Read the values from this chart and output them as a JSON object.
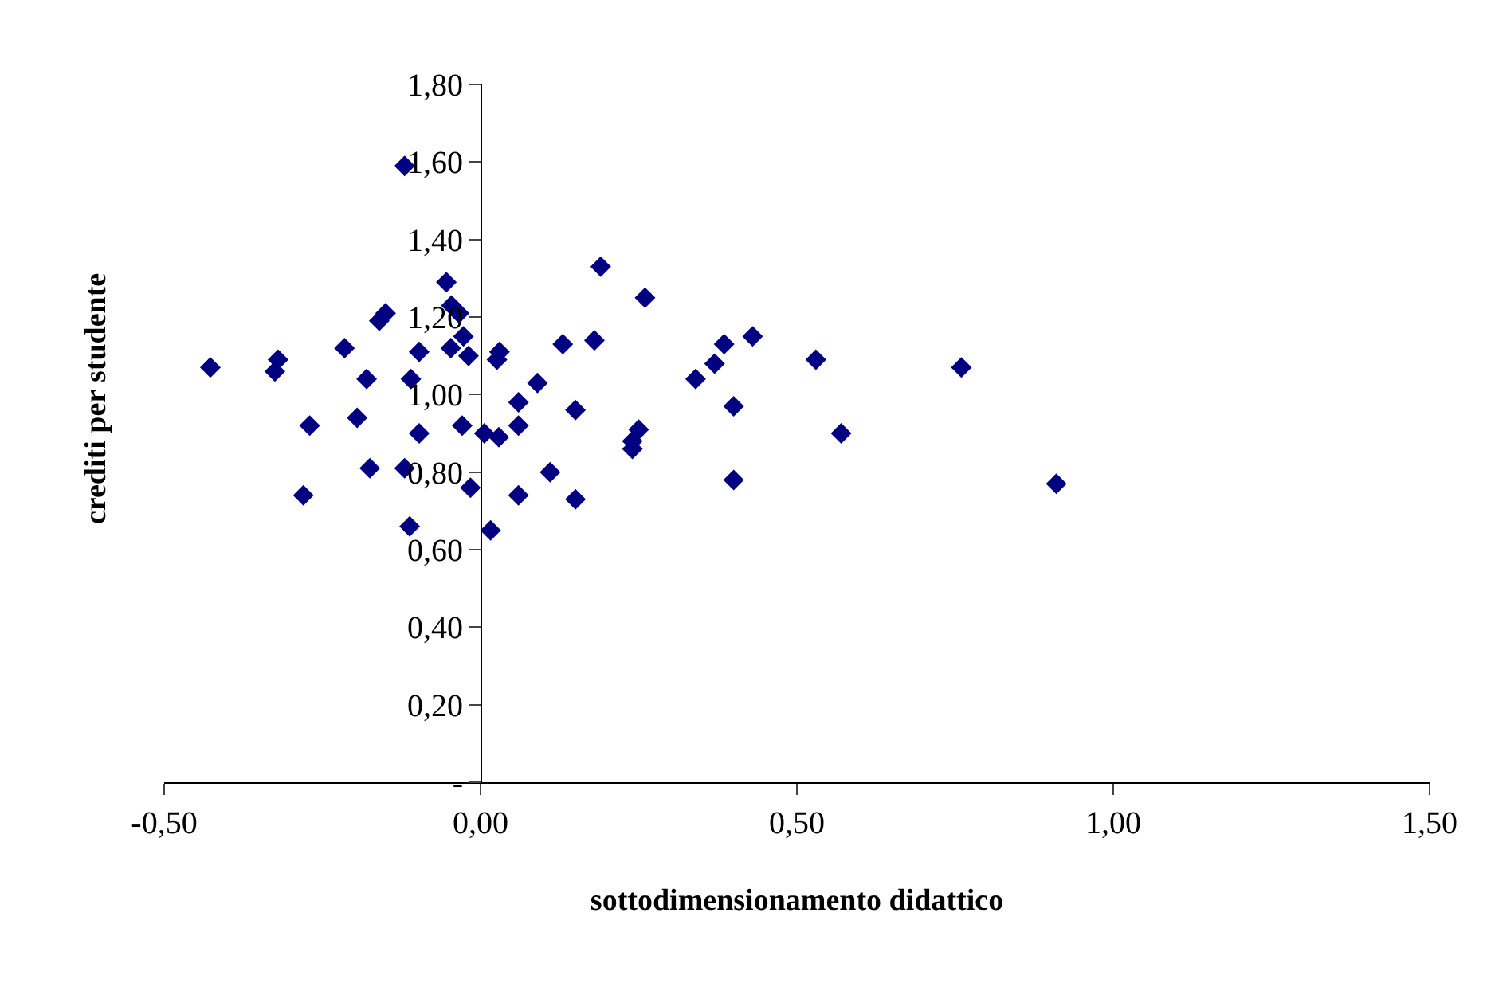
{
  "chart_data": {
    "type": "scatter",
    "xlabel": "sottodimensionamento didattico",
    "ylabel": "crediti per studente",
    "x": [
      -0.427,
      -0.32,
      -0.325,
      -0.27,
      -0.28,
      -0.215,
      -0.195,
      -0.18,
      -0.175,
      -0.16,
      -0.15,
      -0.12,
      -0.11,
      -0.097,
      -0.097,
      -0.112,
      -0.12,
      -0.054,
      -0.046,
      -0.034,
      -0.047,
      -0.027,
      -0.019,
      -0.029,
      -0.016,
      0.006,
      0.029,
      0.016,
      0.026,
      0.03,
      0.19,
      0.26,
      0.13,
      0.18,
      0.09,
      0.06,
      0.15,
      0.06,
      0.25,
      0.24,
      0.24,
      0.11,
      0.06,
      0.15,
      0.34,
      0.37,
      0.385,
      0.43,
      0.53,
      0.4,
      0.57,
      0.4,
      0.76,
      0.91
    ],
    "series": [
      {
        "color": "#000080",
        "values": [
          1.07,
          1.09,
          1.06,
          0.92,
          0.74,
          1.12,
          0.94,
          1.04,
          0.81,
          1.19,
          1.21,
          1.59,
          1.04,
          1.11,
          0.9,
          0.66,
          0.81,
          1.29,
          1.23,
          1.21,
          1.12,
          1.15,
          1.1,
          0.92,
          0.76,
          0.9,
          0.89,
          0.65,
          1.09,
          1.11,
          1.33,
          1.25,
          1.13,
          1.14,
          1.03,
          0.98,
          0.96,
          0.92,
          0.91,
          0.88,
          0.86,
          0.8,
          0.74,
          0.73,
          1.04,
          1.08,
          1.13,
          1.15,
          1.09,
          0.97,
          0.9,
          0.78,
          1.07,
          0.77
        ]
      }
    ],
    "xlim": [
      -0.5,
      1.5
    ],
    "ylim": [
      0,
      1.8
    ],
    "xticks": [
      {
        "value": -0.5,
        "label": "-0,50"
      },
      {
        "value": 0,
        "label": "0,00"
      },
      {
        "value": 0.5,
        "label": "0,50"
      },
      {
        "value": 1,
        "label": "1,00"
      },
      {
        "value": 1.5,
        "label": "1,50"
      }
    ],
    "yticks": [
      {
        "value": 0,
        "label": "-"
      },
      {
        "value": 0.2,
        "label": "0,20"
      },
      {
        "value": 0.4,
        "label": "0,40"
      },
      {
        "value": 0.6,
        "label": "0,60"
      },
      {
        "value": 0.8,
        "label": "0,80"
      },
      {
        "value": 1,
        "label": "1,00"
      },
      {
        "value": 1.2,
        "label": "1,20"
      },
      {
        "value": 1.4,
        "label": "1,40"
      },
      {
        "value": 1.6,
        "label": "1,60"
      },
      {
        "value": 1.8,
        "label": "1,80"
      }
    ],
    "marker": "diamond",
    "grid": false
  }
}
